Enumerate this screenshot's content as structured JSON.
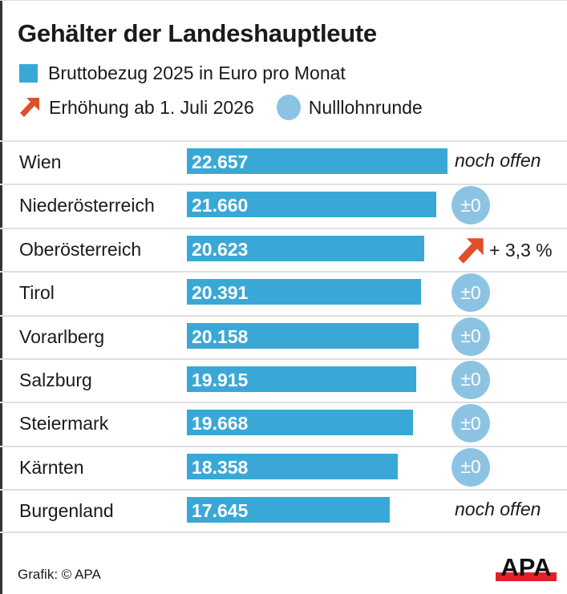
{
  "chart_data": {
    "type": "bar",
    "title": "Gehälter der Landeshauptleute",
    "legend": [
      {
        "label": "Bruttobezug 2025 in Euro pro Monat",
        "color": "#3aa8d6",
        "shape": "square"
      },
      {
        "label": "Erhöhung ab 1. Juli 2026",
        "color": "#e04e2c",
        "shape": "arrow-up-right"
      },
      {
        "label": "Nulllohnrunde",
        "color": "#8dc3e2",
        "shape": "circle"
      }
    ],
    "categories": [
      "Wien",
      "Niederösterreich",
      "Oberösterreich",
      "Tirol",
      "Vorarlberg",
      "Salzburg",
      "Steiermark",
      "Kärnten",
      "Burgenland"
    ],
    "values": [
      22657,
      21660,
      20623,
      20391,
      20158,
      19915,
      19668,
      18358,
      17645
    ],
    "value_labels": [
      "22.657",
      "21.660",
      "20.623",
      "20.391",
      "20.158",
      "19.915",
      "19.668",
      "18.358",
      "17.645"
    ],
    "changes": [
      {
        "type": "open",
        "text": "noch offen"
      },
      {
        "type": "zero",
        "text": "±0"
      },
      {
        "type": "increase",
        "text": "+ 3,3 %"
      },
      {
        "type": "zero",
        "text": "±0"
      },
      {
        "type": "zero",
        "text": "±0"
      },
      {
        "type": "zero",
        "text": "±0"
      },
      {
        "type": "zero",
        "text": "±0"
      },
      {
        "type": "zero",
        "text": "±0"
      },
      {
        "type": "open",
        "text": "noch offen"
      }
    ],
    "orientation": "horizontal"
  },
  "footer": {
    "source": "Grafik: © APA",
    "logo": "APA"
  }
}
